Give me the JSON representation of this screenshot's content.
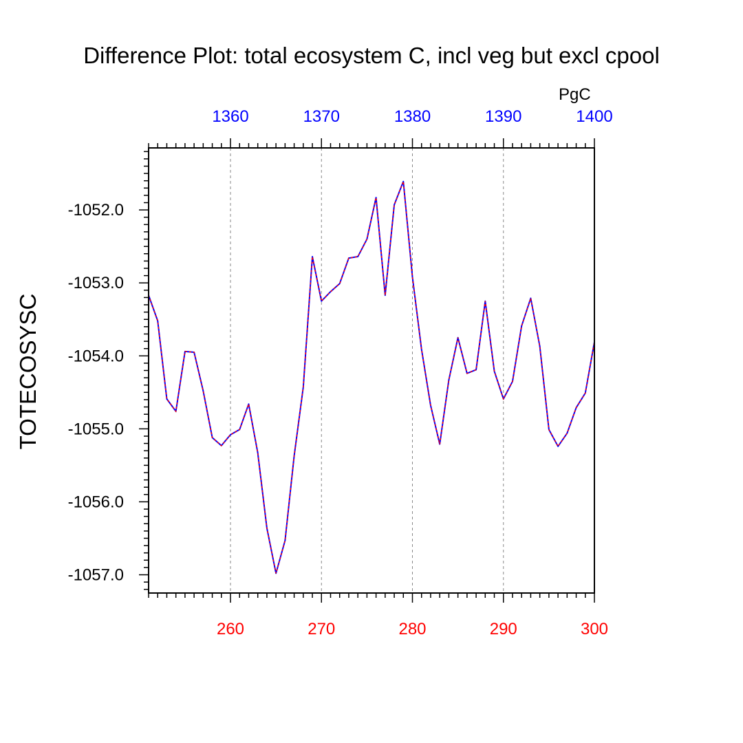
{
  "chart_data": {
    "type": "line",
    "title": "Difference Plot: total ecosystem C, incl veg but excl cpool",
    "ylabel": "TOTECOSYSC",
    "units": "PgC",
    "xlim": [
      251,
      300
    ],
    "ylim": [
      -1057.25,
      -1051.15
    ],
    "yticks": [
      -1057.0,
      -1056.0,
      -1055.0,
      -1054.0,
      -1053.0,
      -1052.0
    ],
    "ytick_labels": [
      "-1057.0",
      "-1056.0",
      "-1055.0",
      "-1054.0",
      "-1053.0",
      "-1052.0"
    ],
    "bottom_axis": {
      "ticks": [
        260,
        270,
        280,
        290,
        300
      ],
      "labels": [
        "260",
        "270",
        "280",
        "290",
        "300"
      ],
      "color": "#ff0000"
    },
    "top_axis": {
      "ticks": [
        260,
        270,
        280,
        290,
        300
      ],
      "labels": [
        "1360",
        "1370",
        "1380",
        "1390",
        "1400"
      ],
      "color": "#0000ff"
    },
    "grid": "vertical dashed at major ticks",
    "series": [
      {
        "color": "#0000ff",
        "x": [
          251,
          252,
          253,
          254,
          255,
          256,
          257,
          258,
          259,
          260,
          261,
          262,
          263,
          264,
          265,
          266,
          267,
          268,
          269,
          270,
          271,
          272,
          273,
          274,
          275,
          276,
          277,
          278,
          279,
          280,
          281,
          282,
          283,
          284,
          285,
          286,
          287,
          288,
          289,
          290,
          291,
          292,
          293,
          294,
          295,
          296,
          297,
          298,
          299,
          300
        ],
        "values": [
          -1053.17,
          -1053.52,
          -1054.59,
          -1054.76,
          -1053.94,
          -1053.95,
          -1054.48,
          -1055.12,
          -1055.23,
          -1055.08,
          -1055.01,
          -1054.66,
          -1055.33,
          -1056.36,
          -1056.98,
          -1056.53,
          -1055.37,
          -1054.43,
          -1052.64,
          -1053.25,
          -1053.12,
          -1053.01,
          -1052.66,
          -1052.64,
          -1052.4,
          -1051.83,
          -1053.17,
          -1051.93,
          -1051.61,
          -1052.92,
          -1053.91,
          -1054.68,
          -1055.21,
          -1054.33,
          -1053.75,
          -1054.24,
          -1054.19,
          -1053.25,
          -1054.21,
          -1054.59,
          -1054.35,
          -1053.59,
          -1053.21,
          -1053.87,
          -1055.01,
          -1055.24,
          -1055.06,
          -1054.71,
          -1054.51,
          -1053.81
        ]
      }
    ]
  }
}
